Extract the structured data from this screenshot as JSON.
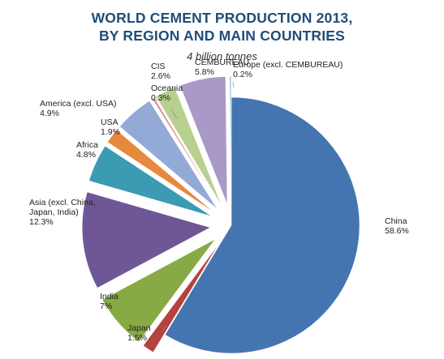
{
  "chart_data": {
    "type": "pie",
    "title_line1": "WORLD CEMENT PRODUCTION 2013,",
    "title_line2": "BY REGION AND MAIN COUNTRIES",
    "subtitle": "4 billion tonnes",
    "slices": [
      {
        "name": "China",
        "label_lines": [
          "China"
        ],
        "value_text": "58.6%",
        "value": 58.6,
        "color": "#4575b0",
        "exploded": false
      },
      {
        "name": "Japan",
        "label_lines": [
          "Japan"
        ],
        "value_text": "1.5%",
        "value": 1.5,
        "color": "#b4423f",
        "exploded": true
      },
      {
        "name": "India",
        "label_lines": [
          "India"
        ],
        "value_text": "7%",
        "value": 7.0,
        "color": "#87aa45",
        "exploded": true
      },
      {
        "name": "Asia (excl. China, Japan, India)",
        "label_lines": [
          "Asia (excl. China,",
          "Japan, India)"
        ],
        "value_text": "12.3%",
        "value": 12.3,
        "color": "#6f5797",
        "exploded": true
      },
      {
        "name": "Africa",
        "label_lines": [
          "Africa"
        ],
        "value_text": "4.8%",
        "value": 4.8,
        "color": "#3a9bb3",
        "exploded": true
      },
      {
        "name": "USA",
        "label_lines": [
          "USA"
        ],
        "value_text": "1.9%",
        "value": 1.9,
        "color": "#e6893d",
        "exploded": true
      },
      {
        "name": "America (excl. USA)",
        "label_lines": [
          "America (excl. USA)"
        ],
        "value_text": "4.9%",
        "value": 4.9,
        "color": "#93a9d6",
        "exploded": true
      },
      {
        "name": "Oceania",
        "label_lines": [
          "Oceania"
        ],
        "value_text": "0.3%",
        "value": 0.3,
        "color": "#d99391",
        "exploded": true
      },
      {
        "name": "CIS",
        "label_lines": [
          "CIS"
        ],
        "value_text": "2.6%",
        "value": 2.6,
        "color": "#b8d08e",
        "exploded": true
      },
      {
        "name": "CEMBUREAU",
        "label_lines": [
          "CEMBUREAU"
        ],
        "value_text": "5.8%",
        "value": 5.8,
        "color": "#a999c6",
        "exploded": true
      },
      {
        "name": "Europe (excl. CEMBUREAU)",
        "label_lines": [
          "Europe (excl. CEMBUREAU)"
        ],
        "value_text": "0.2%",
        "value": 0.2,
        "color": "#7fc3d6",
        "exploded": true
      }
    ]
  }
}
